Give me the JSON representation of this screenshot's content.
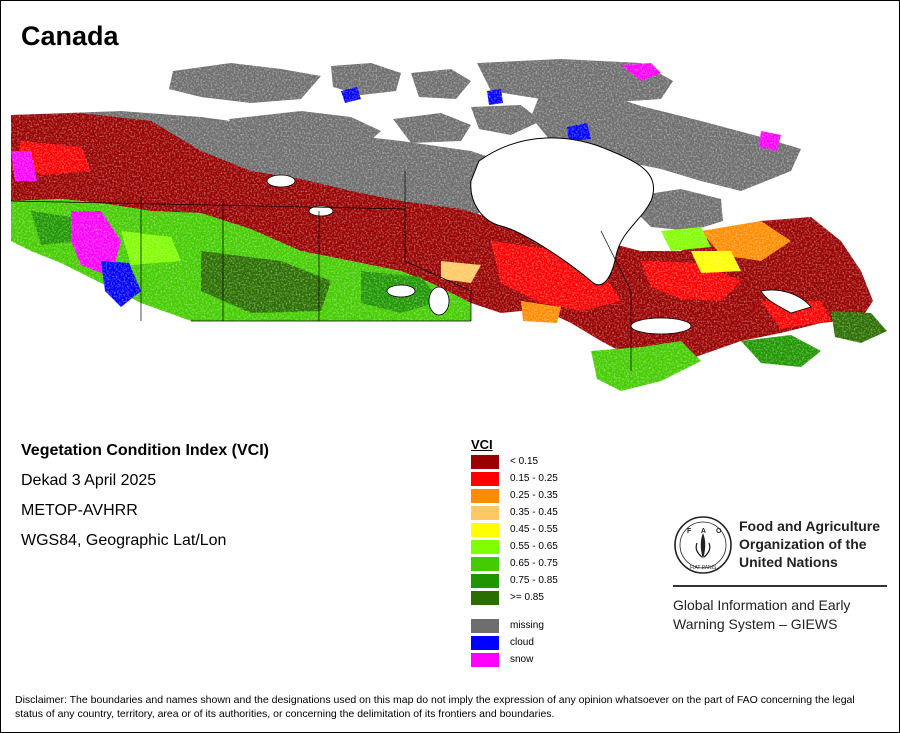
{
  "title": "Canada",
  "info": {
    "index_name": "Vegetation Condition Index (VCI)",
    "period": "Dekad 3 April 2025",
    "sensor": "METOP-AVHRR",
    "projection": "WGS84, Geographic Lat/Lon"
  },
  "legend": {
    "title": "VCI",
    "classes": [
      {
        "label": "< 0.15",
        "color": "#990000"
      },
      {
        "label": "0.15 - 0.25",
        "color": "#ff0000"
      },
      {
        "label": "0.25 - 0.35",
        "color": "#ff8c00"
      },
      {
        "label": "0.35 - 0.45",
        "color": "#ffc864"
      },
      {
        "label": "0.45 - 0.55",
        "color": "#ffff00"
      },
      {
        "label": "0.55 - 0.65",
        "color": "#80ff00"
      },
      {
        "label": "0.65 - 0.75",
        "color": "#44cc00"
      },
      {
        "label": "0.75 - 0.85",
        "color": "#1e9600"
      },
      {
        "label": ">= 0.85",
        "color": "#2a6e00"
      }
    ],
    "special": [
      {
        "label": "missing",
        "color": "#6e6e6e"
      },
      {
        "label": "cloud",
        "color": "#0000ff"
      },
      {
        "label": "snow",
        "color": "#ff00ff"
      }
    ]
  },
  "organization": {
    "logo_text": "FAO",
    "logo_motto": "FIAT PANIS",
    "name": "Food and Agriculture Organization of the United Nations",
    "program": "Global Information and Early Warning System – GIEWS"
  },
  "disclaimer": "Disclaimer: The boundaries and names shown and the designations used on this map do not imply the expression of any opinion whatsoever on the part of FAO concerning the legal status of any country, territory, area or of its authorities, or concerning the delimitation of its frontiers and boundaries."
}
